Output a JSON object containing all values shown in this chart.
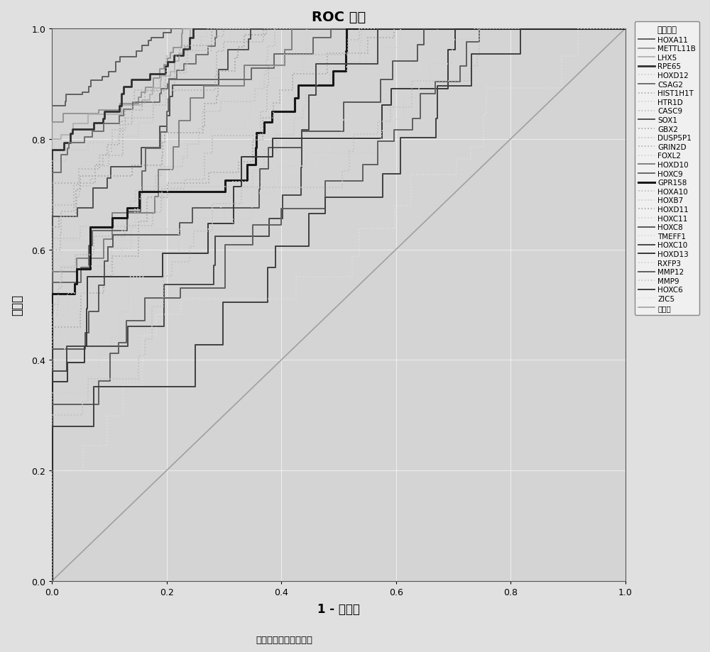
{
  "title": "ROC 曲线",
  "xlabel": "1 - 特异性",
  "ylabel": "敏感度",
  "subtitle": "对角段由绑定値生成。",
  "legend_title": "曲线来源",
  "plot_bg": "#d4d4d4",
  "fig_bg": "#e0e0e0",
  "curves": [
    {
      "name": "HOXA11",
      "auc": 0.975,
      "color": "#606060",
      "lw": 1.4,
      "ls": "solid",
      "init_tpr": 0.86
    },
    {
      "name": "METTL11B",
      "auc": 0.965,
      "color": "#909090",
      "lw": 1.3,
      "ls": "solid",
      "init_tpr": 0.83
    },
    {
      "name": "LHX5",
      "auc": 0.96,
      "color": "#b0b0b0",
      "lw": 1.3,
      "ls": "solid",
      "init_tpr": 0.8
    },
    {
      "name": "RPE65",
      "auc": 0.955,
      "color": "#303030",
      "lw": 2.0,
      "ls": "solid",
      "init_tpr": 0.78
    },
    {
      "name": "HOXD12",
      "auc": 0.95,
      "color": "#c8c8c8",
      "lw": 1.2,
      "ls": "dotted",
      "init_tpr": 0.76
    },
    {
      "name": "CSAG2",
      "auc": 0.945,
      "color": "#707070",
      "lw": 1.4,
      "ls": "solid",
      "init_tpr": 0.74
    },
    {
      "name": "HIST1H1T",
      "auc": 0.94,
      "color": "#a8a8a8",
      "lw": 1.2,
      "ls": "dotted",
      "init_tpr": 0.72
    },
    {
      "name": "HTR1D",
      "auc": 0.935,
      "color": "#d0d0d0",
      "lw": 1.2,
      "ls": "dotted",
      "init_tpr": 0.7
    },
    {
      "name": "CASC9",
      "auc": 0.93,
      "color": "#b8b8b8",
      "lw": 1.2,
      "ls": "dotted",
      "init_tpr": 0.68
    },
    {
      "name": "SOX1",
      "auc": 0.92,
      "color": "#505050",
      "lw": 1.4,
      "ls": "solid",
      "init_tpr": 0.66
    },
    {
      "name": "GBX2",
      "auc": 0.91,
      "color": "#a0a0a0",
      "lw": 1.2,
      "ls": "dotted",
      "init_tpr": 0.64
    },
    {
      "name": "DUSP5P1",
      "auc": 0.9,
      "color": "#c0c0c0",
      "lw": 1.2,
      "ls": "dotted",
      "init_tpr": 0.62
    },
    {
      "name": "GRIN2D",
      "auc": 0.89,
      "color": "#b0b0b0",
      "lw": 1.2,
      "ls": "dotted",
      "init_tpr": 0.6
    },
    {
      "name": "FOXL2",
      "auc": 0.88,
      "color": "#d0d0d0",
      "lw": 1.2,
      "ls": "dotted",
      "init_tpr": 0.58
    },
    {
      "name": "HOXD10",
      "auc": 0.87,
      "color": "#808080",
      "lw": 1.4,
      "ls": "solid",
      "init_tpr": 0.56
    },
    {
      "name": "HOXC9",
      "auc": 0.86,
      "color": "#686868",
      "lw": 1.4,
      "ls": "solid",
      "init_tpr": 0.54
    },
    {
      "name": "GPR158",
      "auc": 0.85,
      "color": "#181818",
      "lw": 2.2,
      "ls": "solid",
      "init_tpr": 0.52
    },
    {
      "name": "HOXA10",
      "auc": 0.84,
      "color": "#b8b8b8",
      "lw": 1.2,
      "ls": "dotted",
      "init_tpr": 0.5
    },
    {
      "name": "HOXB7",
      "auc": 0.83,
      "color": "#c8c8c8",
      "lw": 1.2,
      "ls": "dotted",
      "init_tpr": 0.48
    },
    {
      "name": "HOXD11",
      "auc": 0.82,
      "color": "#a8a8a8",
      "lw": 1.2,
      "ls": "dotted",
      "init_tpr": 0.46
    },
    {
      "name": "HOXC11",
      "auc": 0.81,
      "color": "#d0d0d0",
      "lw": 1.2,
      "ls": "dotted",
      "init_tpr": 0.44
    },
    {
      "name": "HOXC8",
      "auc": 0.8,
      "color": "#585858",
      "lw": 1.4,
      "ls": "solid",
      "init_tpr": 0.42
    },
    {
      "name": "TMEFF1",
      "auc": 0.79,
      "color": "#d8d8d8",
      "lw": 1.2,
      "ls": "dotted",
      "init_tpr": 0.4
    },
    {
      "name": "HOXC10",
      "auc": 0.78,
      "color": "#484848",
      "lw": 1.4,
      "ls": "solid",
      "init_tpr": 0.38
    },
    {
      "name": "HOXD13",
      "auc": 0.77,
      "color": "#383838",
      "lw": 1.4,
      "ls": "solid",
      "init_tpr": 0.36
    },
    {
      "name": "RXFP3",
      "auc": 0.76,
      "color": "#d0d0d0",
      "lw": 1.2,
      "ls": "dotted",
      "init_tpr": 0.34
    },
    {
      "name": "MMP12",
      "auc": 0.75,
      "color": "#606060",
      "lw": 1.4,
      "ls": "solid",
      "init_tpr": 0.32
    },
    {
      "name": "MMP9",
      "auc": 0.74,
      "color": "#c0c0c0",
      "lw": 1.2,
      "ls": "dotted",
      "init_tpr": 0.3
    },
    {
      "name": "HOXC6",
      "auc": 0.73,
      "color": "#404040",
      "lw": 1.4,
      "ls": "solid",
      "init_tpr": 0.28
    },
    {
      "name": "ZIC5",
      "auc": 0.68,
      "color": "#e0e0e0",
      "lw": 1.2,
      "ls": "dotted",
      "init_tpr": 0.2
    },
    {
      "name": "参考线",
      "auc": 0.5,
      "color": "#a0a0a0",
      "lw": 1.2,
      "ls": "solid",
      "init_tpr": 0.0
    }
  ]
}
